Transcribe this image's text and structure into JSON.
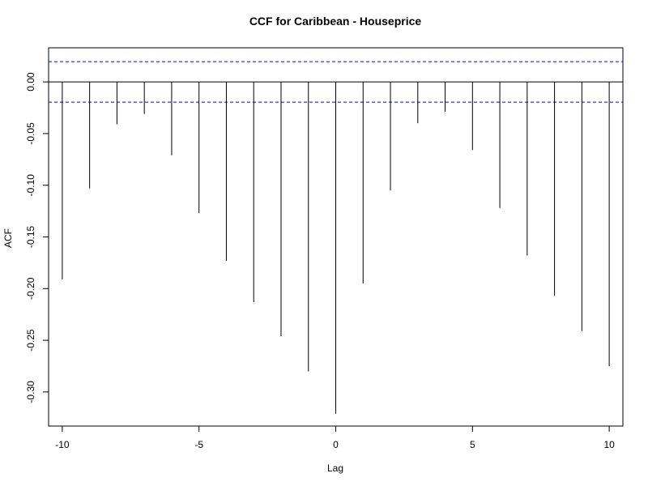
{
  "chart_data": {
    "type": "bar",
    "title": "CCF for Caribbean - Houseprice",
    "xlabel": "Lag",
    "ylabel": "ACF",
    "x": [
      -10,
      -9,
      -8,
      -7,
      -6,
      -5,
      -4,
      -3,
      -2,
      -1,
      0,
      1,
      2,
      3,
      4,
      5,
      6,
      7,
      8,
      9,
      10
    ],
    "values": [
      -0.191,
      -0.103,
      -0.041,
      -0.031,
      -0.071,
      -0.127,
      -0.173,
      -0.213,
      -0.246,
      -0.28,
      -0.321,
      -0.195,
      -0.105,
      -0.04,
      -0.029,
      -0.066,
      -0.122,
      -0.168,
      -0.207,
      -0.241,
      -0.275
    ],
    "xlim": [
      -10.5,
      10.5
    ],
    "ylim": [
      -0.333,
      0.033
    ],
    "x_ticks": [
      "-10",
      "-5",
      "0",
      "5",
      "10"
    ],
    "y_ticks": [
      "0.00",
      "-0.05",
      "-0.10",
      "-0.15",
      "-0.20",
      "-0.25",
      "-0.30"
    ],
    "confidence_bound": 0.0196,
    "bar_color": "#000000",
    "ci_color": "#0000ff",
    "grid": false
  }
}
